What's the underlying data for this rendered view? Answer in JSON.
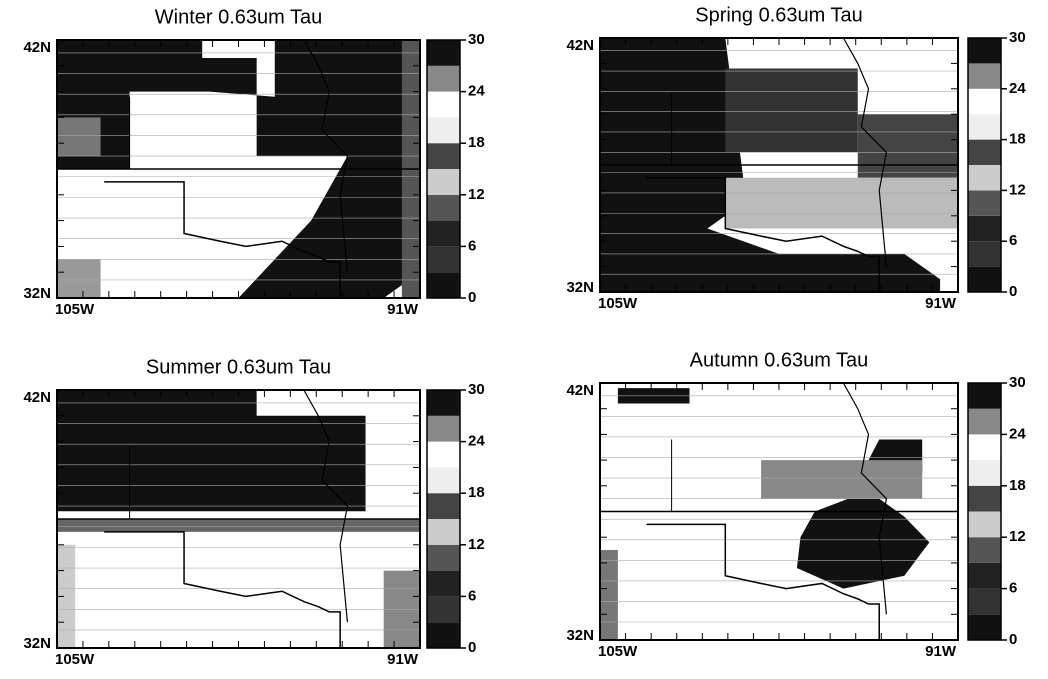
{
  "panels": [
    {
      "title": "Winter 0.63um Tau",
      "lat_labels": [
        "42N",
        "32N"
      ],
      "lon_labels": [
        "105W",
        "91W"
      ],
      "colorbar": {
        "lim": [
          0,
          30
        ],
        "ticks": [
          0,
          6,
          12,
          18,
          24,
          30
        ],
        "colors": [
          "#111",
          "#333",
          "#222",
          "#555",
          "#ccc",
          "#444",
          "#eee",
          "#fff",
          "#888",
          "#111"
        ]
      }
    },
    {
      "title": "Spring 0.63um Tau",
      "lat_labels": [
        "42N",
        "32N"
      ],
      "lon_labels": [
        "105W",
        "91W"
      ],
      "colorbar": {
        "lim": [
          0,
          30
        ],
        "ticks": [
          0,
          6,
          12,
          18,
          24,
          30
        ],
        "colors": [
          "#111",
          "#333",
          "#222",
          "#555",
          "#ccc",
          "#444",
          "#eee",
          "#fff",
          "#888",
          "#111"
        ]
      }
    },
    {
      "title": "Summer 0.63um Tau",
      "lat_labels": [
        "42N",
        "32N"
      ],
      "lon_labels": [
        "105W",
        "91W"
      ],
      "colorbar": {
        "lim": [
          0,
          30
        ],
        "ticks": [
          0,
          6,
          12,
          18,
          24,
          30
        ],
        "colors": [
          "#111",
          "#333",
          "#222",
          "#555",
          "#ccc",
          "#444",
          "#eee",
          "#fff",
          "#888",
          "#111"
        ]
      }
    },
    {
      "title": "Autumn 0.63um Tau",
      "lat_labels": [
        "42N",
        "32N"
      ],
      "lon_labels": [
        "105W",
        "91W"
      ],
      "colorbar": {
        "lim": [
          0,
          30
        ],
        "ticks": [
          0,
          6,
          12,
          18,
          24,
          30
        ],
        "colors": [
          "#111",
          "#333",
          "#222",
          "#555",
          "#ccc",
          "#444",
          "#eee",
          "#fff",
          "#888",
          "#111"
        ]
      }
    }
  ]
}
